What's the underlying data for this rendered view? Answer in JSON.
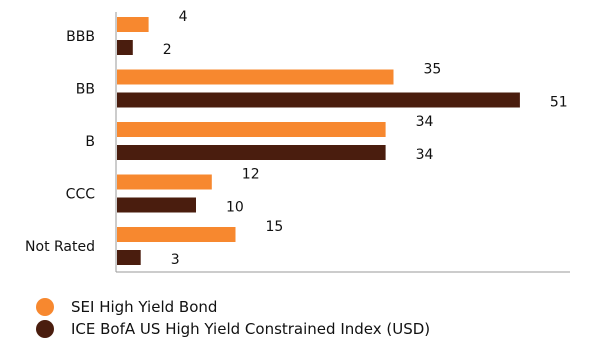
{
  "chart_data": {
    "type": "bar",
    "orientation": "horizontal",
    "categories": [
      "BBB",
      "BB",
      "B",
      "CCC",
      "Not Rated"
    ],
    "series": [
      {
        "name": "SEI High Yield Bond",
        "color": "#f7882f",
        "values": [
          4,
          35,
          34,
          12,
          15
        ]
      },
      {
        "name": "ICE BofA US High Yield Constrained Index (USD)",
        "color": "#4a1d0e",
        "values": [
          2,
          51,
          34,
          10,
          3
        ]
      }
    ],
    "title": "",
    "xlabel": "",
    "ylabel": "",
    "xlim": [
      0,
      58
    ],
    "grid": false,
    "legend": "bottom-left"
  }
}
